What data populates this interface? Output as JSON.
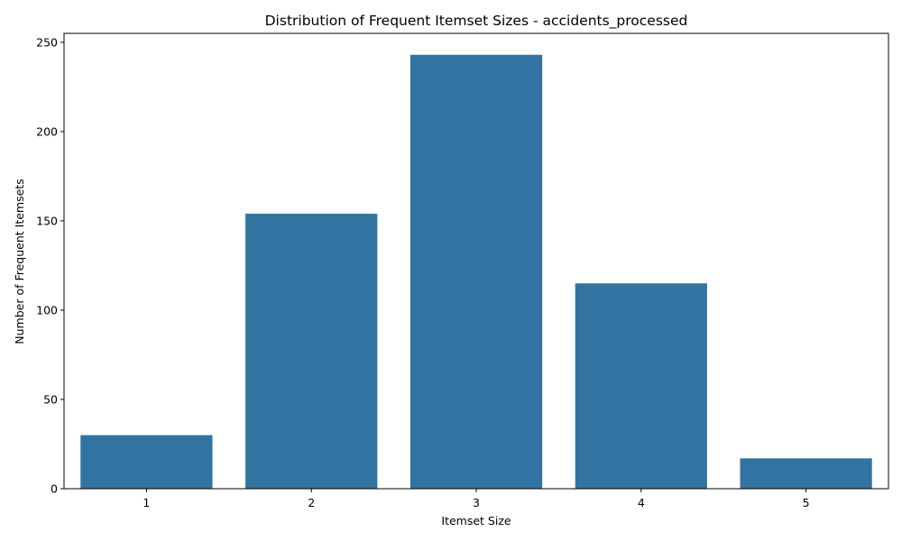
{
  "chart_data": {
    "type": "bar",
    "title": "Distribution of Frequent Itemset Sizes - accidents_processed",
    "xlabel": "Itemset Size",
    "ylabel": "Number of Frequent Itemsets",
    "categories": [
      "1",
      "2",
      "3",
      "4",
      "5"
    ],
    "values": [
      30,
      154,
      243,
      115,
      17
    ],
    "ylim": [
      0,
      255
    ],
    "yticks": [
      0,
      50,
      100,
      150,
      200,
      250
    ],
    "bar_color": "#3274a1",
    "grid": false,
    "legend": "none"
  }
}
